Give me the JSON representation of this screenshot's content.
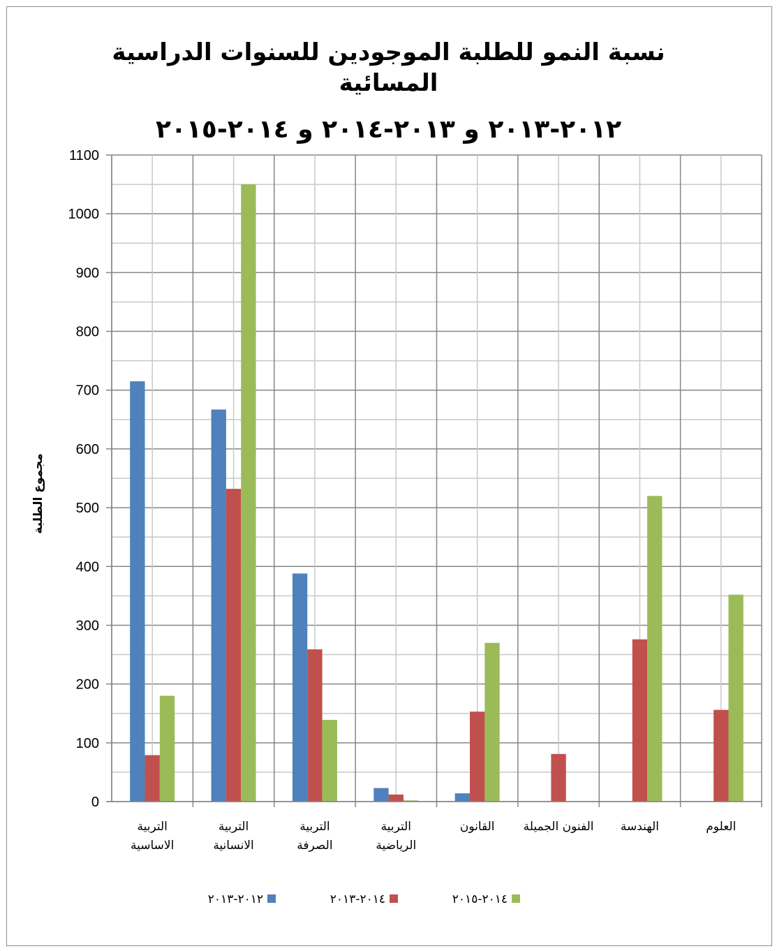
{
  "chart_data": {
    "type": "bar",
    "title_line1": "نسبة النمو للطلبة الموجودين للسنوات الدراسية",
    "title_line2": "المسائية",
    "subtitle": "٢٠١٢-٢٠١٣ و ٢٠١٣-٢٠١٤ و ٢٠١٤-٢٠١٥",
    "ylabel": "مجموع الطلبة",
    "xlabel": "",
    "ylim": [
      0,
      1100
    ],
    "yticks": [
      0,
      100,
      200,
      300,
      400,
      500,
      600,
      700,
      800,
      900,
      1000,
      1100
    ],
    "grid": true,
    "legend_position": "bottom",
    "categories": [
      [
        "التربية",
        "الاساسية"
      ],
      [
        "التربية",
        "الانسانية"
      ],
      [
        "التربية",
        "الصرفة"
      ],
      [
        "التربية",
        "الرياضية"
      ],
      [
        "القانون"
      ],
      [
        "الفنون الجميلة"
      ],
      [
        "الهندسة"
      ],
      [
        "العلوم"
      ]
    ],
    "series": [
      {
        "name": "٢٠١٢-٢٠١٣",
        "color": "#4F81BD",
        "values": [
          715,
          667,
          388,
          23,
          14,
          0,
          0,
          0
        ]
      },
      {
        "name": "٢٠١٤-٢٠١٣",
        "color": "#C0504D",
        "values": [
          79,
          532,
          259,
          12,
          153,
          81,
          276,
          156
        ]
      },
      {
        "name": "٢٠١٤-٢٠١٥",
        "color": "#9BBB59",
        "values": [
          180,
          1050,
          139,
          2,
          270,
          0,
          520,
          352
        ]
      }
    ]
  }
}
